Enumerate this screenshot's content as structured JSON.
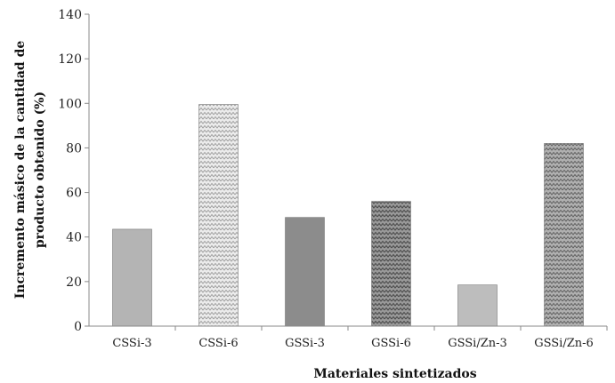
{
  "chart_data": {
    "type": "bar",
    "title": "",
    "xlabel": "Materiales sintetizados",
    "ylabel_lines": [
      "Incremento másico de la cantidad de",
      "producto obtenido (%)"
    ],
    "ylim": [
      0,
      140
    ],
    "yticks": [
      0,
      20,
      40,
      60,
      80,
      100,
      120,
      140
    ],
    "ytick_labels": [
      "0",
      "20",
      "40",
      "60",
      "80",
      "100",
      "120",
      "140"
    ],
    "grid": false,
    "legend": "none",
    "categories": [
      "CSSi-3",
      "CSSi-6",
      "GSSi-3",
      "GSSi-6",
      "GSSi/Zn-3",
      "GSSi/Zn-6"
    ],
    "values": [
      43.5,
      99.5,
      48.8,
      56,
      18.5,
      82
    ],
    "bar_styles": [
      {
        "fill": "#b4b4b4",
        "pattern": "solid"
      },
      {
        "fill": "#e8e8e8",
        "pattern": "zigzag-light"
      },
      {
        "fill": "#8c8c8c",
        "pattern": "solid"
      },
      {
        "fill": "#8a8a8a",
        "pattern": "zigzag-dark"
      },
      {
        "fill": "#bdbdbd",
        "pattern": "solid"
      },
      {
        "fill": "#9a9a9a",
        "pattern": "zigzag-medium"
      }
    ]
  }
}
